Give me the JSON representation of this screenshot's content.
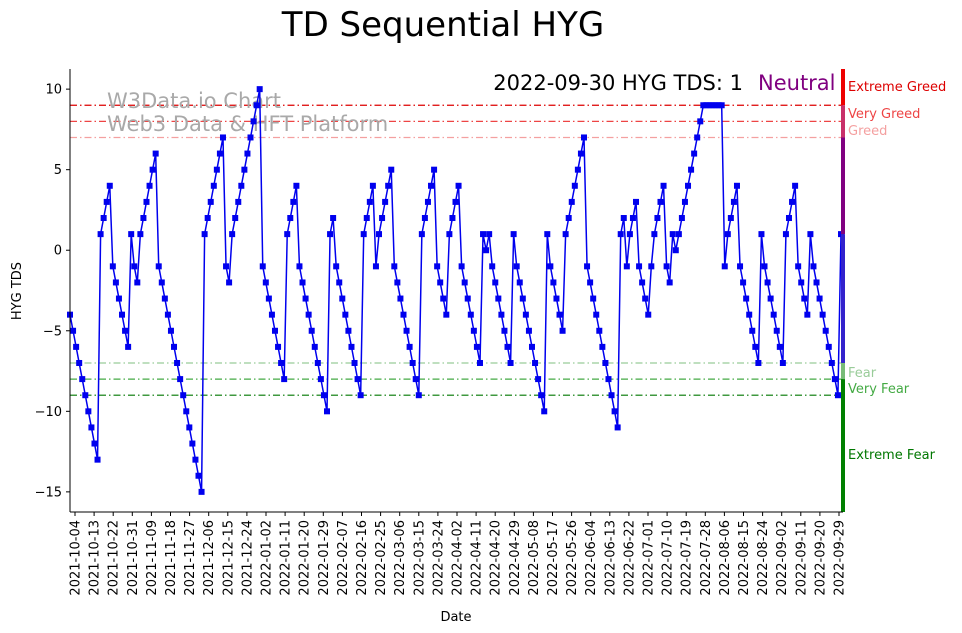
{
  "chart_data": {
    "type": "line",
    "title": "TD Sequential HYG",
    "xlabel": "Date",
    "ylabel": "HYG TDS",
    "ylim": [
      -16.25,
      11.25
    ],
    "yticks": [
      -15,
      -10,
      -5,
      0,
      5,
      10
    ],
    "ytick_labels": [
      "−15",
      "−10",
      "−5",
      "0",
      "5",
      "10"
    ],
    "xticks": [
      "2021-10-04",
      "2021-10-13",
      "2021-10-22",
      "2021-10-31",
      "2021-11-09",
      "2021-11-18",
      "2021-11-27",
      "2021-12-06",
      "2021-12-15",
      "2021-12-24",
      "2022-01-02",
      "2022-01-11",
      "2022-01-20",
      "2022-01-29",
      "2022-02-07",
      "2022-02-16",
      "2022-02-25",
      "2022-03-06",
      "2022-03-15",
      "2022-03-24",
      "2022-04-02",
      "2022-04-11",
      "2022-04-20",
      "2022-04-29",
      "2022-05-08",
      "2022-05-17",
      "2022-05-26",
      "2022-06-04",
      "2022-06-13",
      "2022-06-22",
      "2022-07-01",
      "2022-07-10",
      "2022-07-19",
      "2022-07-28",
      "2022-08-06",
      "2022-08-15",
      "2022-08-24",
      "2022-09-02",
      "2022-09-11",
      "2022-09-20",
      "2022-09-29"
    ],
    "series": [
      {
        "name": "HYG TDS",
        "color": "#0000ee",
        "values": [
          -4,
          -5,
          -6,
          -7,
          -8,
          -9,
          -10,
          -11,
          -12,
          -13,
          1,
          2,
          3,
          4,
          -1,
          -2,
          -3,
          -4,
          -5,
          -6,
          1,
          -1,
          -2,
          1,
          2,
          3,
          4,
          5,
          6,
          -1,
          -2,
          -3,
          -4,
          -5,
          -6,
          -7,
          -8,
          -9,
          -10,
          -11,
          -12,
          -13,
          -14,
          -15,
          1,
          2,
          3,
          4,
          5,
          6,
          7,
          -1,
          -2,
          1,
          2,
          3,
          4,
          5,
          6,
          7,
          8,
          9,
          10,
          -1,
          -2,
          -3,
          -4,
          -5,
          -6,
          -7,
          -8,
          1,
          2,
          3,
          4,
          -1,
          -2,
          -3,
          -4,
          -5,
          -6,
          -7,
          -8,
          -9,
          -10,
          1,
          2,
          -1,
          -2,
          -3,
          -4,
          -5,
          -6,
          -7,
          -8,
          -9,
          1,
          2,
          3,
          4,
          -1,
          1,
          2,
          3,
          4,
          5,
          -1,
          -2,
          -3,
          -4,
          -5,
          -6,
          -7,
          -8,
          -9,
          1,
          2,
          3,
          4,
          5,
          -1,
          -2,
          -3,
          -4,
          1,
          2,
          3,
          4,
          -1,
          -2,
          -3,
          -4,
          -5,
          -6,
          -7,
          1,
          0,
          1,
          -1,
          -2,
          -3,
          -4,
          -5,
          -6,
          -7,
          1,
          -1,
          -2,
          -3,
          -4,
          -5,
          -6,
          -7,
          -8,
          -9,
          -10,
          1,
          -1,
          -2,
          -3,
          -4,
          -5,
          1,
          2,
          3,
          4,
          5,
          6,
          7,
          -1,
          -2,
          -3,
          -4,
          -5,
          -6,
          -7,
          -8,
          -9,
          -10,
          -11,
          1,
          2,
          -1,
          1,
          2,
          3,
          -1,
          -2,
          -3,
          -4,
          -1,
          1,
          2,
          3,
          4,
          -1,
          -2,
          1,
          0,
          1,
          2,
          3,
          4,
          5,
          6,
          7,
          8,
          9,
          9,
          9,
          9,
          9,
          9,
          9,
          -1,
          1,
          2,
          3,
          4,
          -1,
          -2,
          -3,
          -4,
          -5,
          -6,
          -7,
          1,
          -1,
          -2,
          -3,
          -4,
          -5,
          -6,
          -7,
          1,
          2,
          3,
          4,
          -1,
          -2,
          -3,
          -4,
          1,
          -1,
          -2,
          -3,
          -4,
          -5,
          -6,
          -7,
          -8,
          -9,
          1
        ]
      }
    ],
    "reference_lines": [
      {
        "label": "Extreme Greed",
        "value": 9,
        "color": "#dd0000"
      },
      {
        "label": "Very Greed",
        "value": 8,
        "color": "#ee4444"
      },
      {
        "label": "Greed",
        "value": 7,
        "color": "#f4a0a0"
      },
      {
        "label": "Fear",
        "value": -7,
        "color": "#99cc99"
      },
      {
        "label": "Very Fear",
        "value": -8,
        "color": "#44aa44"
      },
      {
        "label": "Extreme Fear",
        "value": -9,
        "color": "#007700"
      }
    ],
    "annotation": "2022-09-30 HYG TDS: 1",
    "status": {
      "label": "Neutral",
      "color": "#800080"
    },
    "watermark": [
      "W3Data.io Chart",
      "Web3 Data & HFT Platform"
    ],
    "side_bar": [
      {
        "from": 11.25,
        "to": 9,
        "color": "#ee0000"
      },
      {
        "from": 9,
        "to": 7,
        "color": "#c8306a"
      },
      {
        "from": 7,
        "to": 1,
        "color": "#800080"
      },
      {
        "from": 1,
        "to": -7,
        "color": "#3322cc"
      },
      {
        "from": -7,
        "to": -8,
        "color": "#77bb77"
      },
      {
        "from": -8,
        "to": -16.25,
        "color": "#008000"
      }
    ],
    "side_labels": [
      {
        "text": "Extreme Greed",
        "color": "#dd0000"
      },
      {
        "text": "Very Greed",
        "color": "#ee4444"
      },
      {
        "text": "Greed",
        "color": "#f4a0a0"
      },
      {
        "text": "Fear",
        "color": "#99cc99"
      },
      {
        "text": "Very Fear",
        "color": "#44aa44"
      },
      {
        "text": "Extreme Fear",
        "color": "#007700"
      }
    ]
  }
}
